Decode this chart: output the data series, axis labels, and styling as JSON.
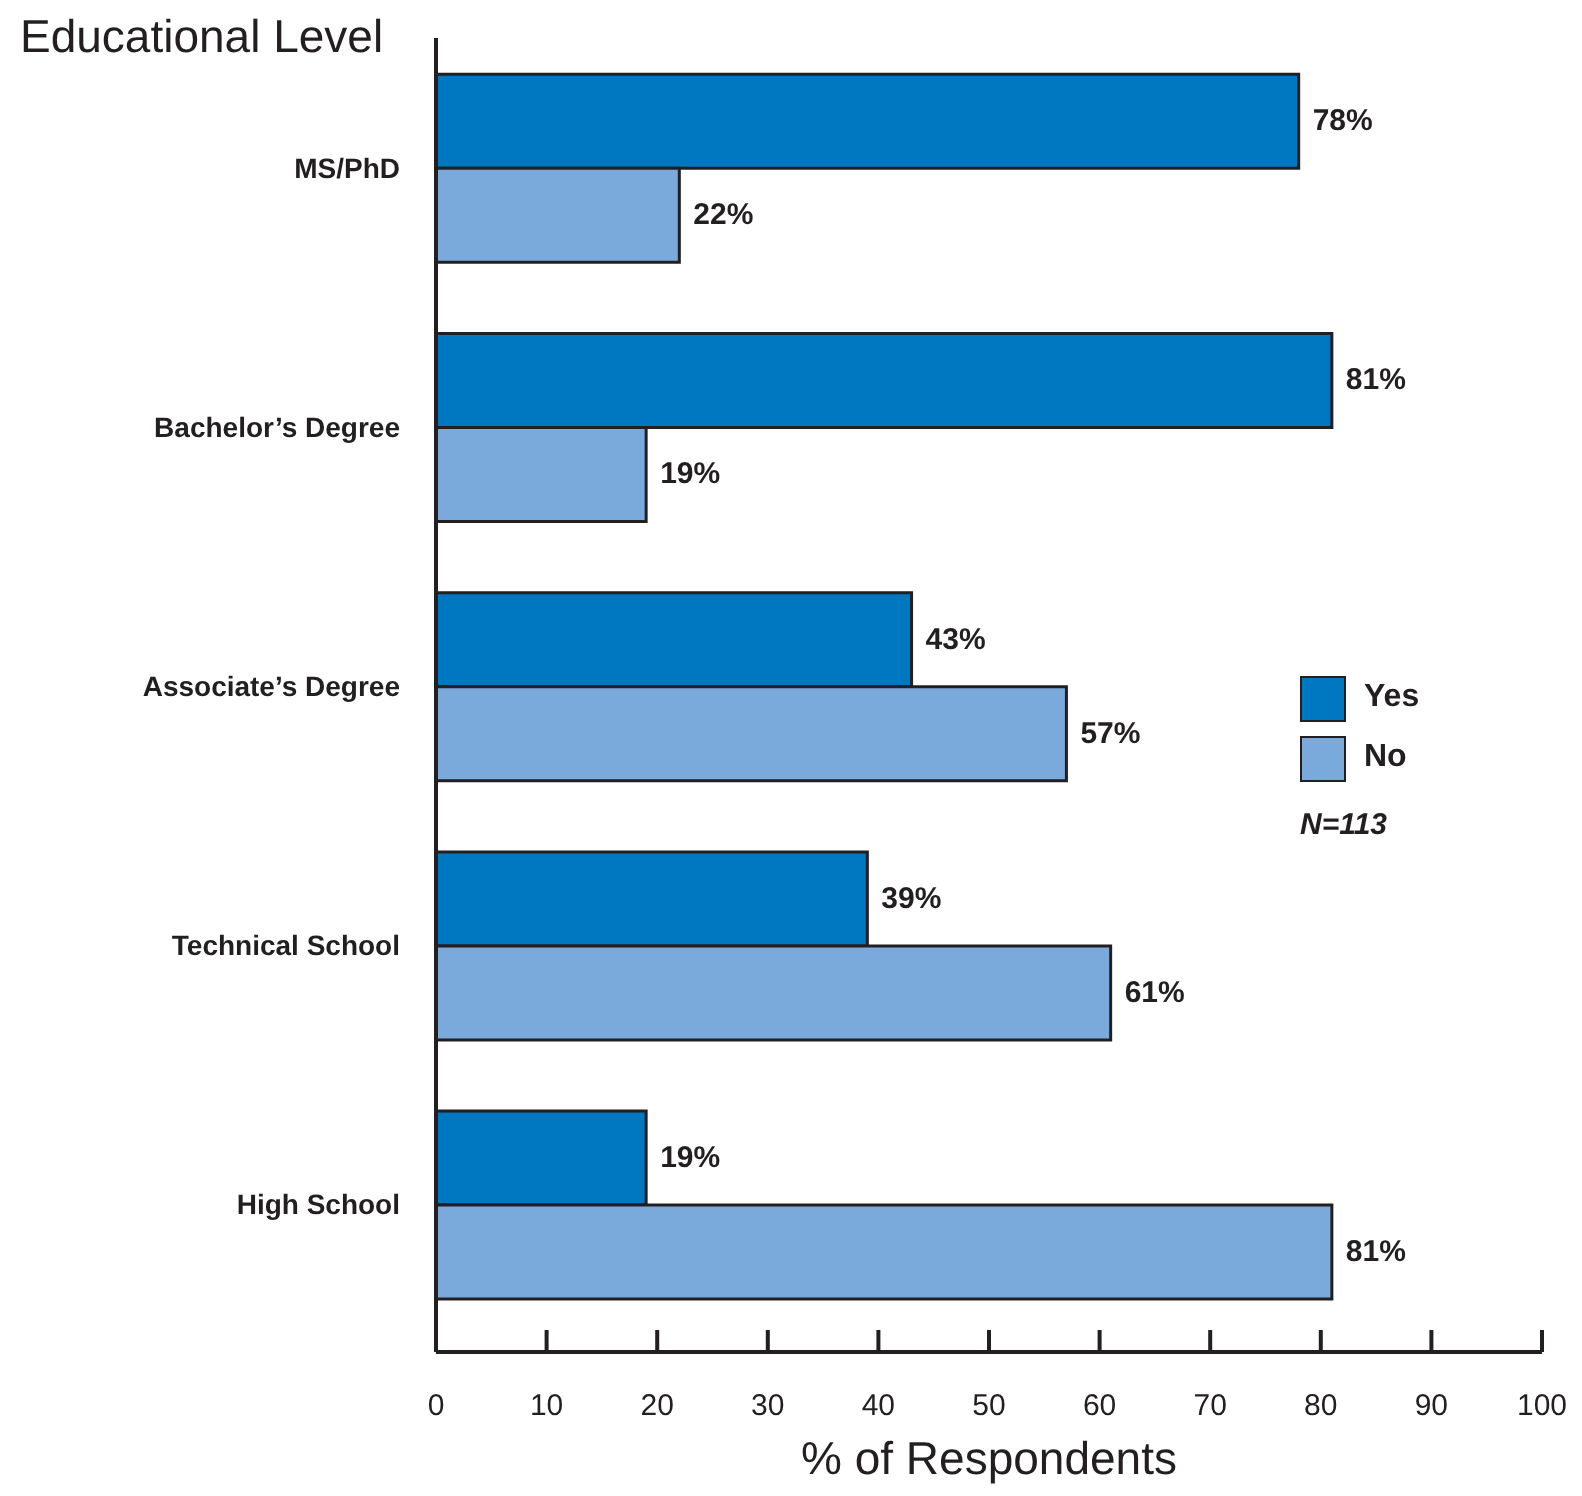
{
  "chart_data": {
    "type": "bar",
    "orientation": "horizontal",
    "ylabel": "Educational Level",
    "xlabel": "% of Respondents",
    "categories": [
      "MS/PhD",
      "Bachelor’s Degree",
      "Associate’s Degree",
      "Technical School",
      "High School"
    ],
    "series": [
      {
        "name": "Yes",
        "color": "#0077c1",
        "values": [
          78,
          81,
          43,
          39,
          19
        ],
        "value_labels": [
          "78%",
          "81%",
          "43%",
          "39%",
          "19%"
        ]
      },
      {
        "name": "No",
        "color": "#7aaadc",
        "values": [
          22,
          19,
          57,
          61,
          81
        ],
        "value_labels": [
          "22%",
          "19%",
          "57%",
          "61%",
          "81%"
        ]
      }
    ],
    "xlim": [
      0,
      100
    ],
    "xticks": [
      0,
      10,
      20,
      30,
      40,
      50,
      60,
      70,
      80,
      90,
      100
    ],
    "legend": "right",
    "annotations": [
      "N=113"
    ]
  }
}
